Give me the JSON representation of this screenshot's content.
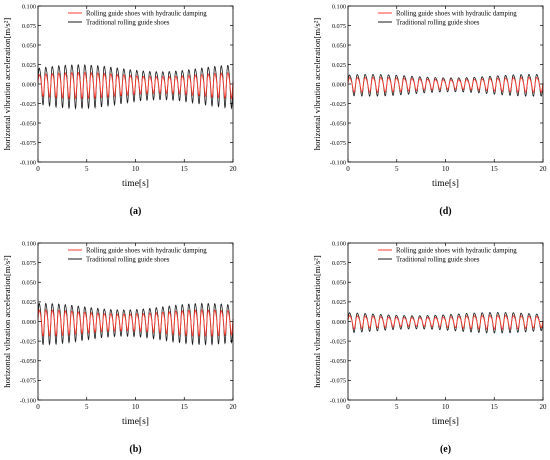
{
  "figure": {
    "panel_labels": [
      "(a)",
      "(d)",
      "(b)",
      "(e)"
    ]
  },
  "colors": {
    "damped": "#ff3b30",
    "traditional": "#1a1a1a",
    "axis": "#000000"
  },
  "chart_data": [
    {
      "type": "line",
      "panel": "(a)",
      "xlabel": "time[s]",
      "ylabel": "horizontal vibration acceleration[m/s²]",
      "xlim": [
        0,
        20
      ],
      "ylim": [
        -0.1,
        0.1
      ],
      "xticks": [
        "0",
        "5",
        "10",
        "15",
        "20"
      ],
      "yticks": [
        "-0.100",
        "-0.075",
        "-0.050",
        "-0.025",
        "0.000",
        "0.025",
        "0.050",
        "0.075",
        "0.100"
      ],
      "legend_position": "top-right",
      "grid": false,
      "series": [
        {
          "name": "Rolling guide shoes with hydraulic damping",
          "amplitude": 0.019,
          "frequency_hz": 1.5,
          "offset": 0.0
        },
        {
          "name": "Traditional rolling guide shoes",
          "amplitude": 0.032,
          "frequency_hz": 1.5,
          "offset": 0.0
        }
      ]
    },
    {
      "type": "line",
      "panel": "(d)",
      "xlabel": "time[s]",
      "ylabel": "horizontal vibration acceleration[m/s²]",
      "xlim": [
        0,
        20
      ],
      "ylim": [
        -0.1,
        0.1
      ],
      "xticks": [
        "0",
        "5",
        "10",
        "15",
        "20"
      ],
      "yticks": [
        "-0.100",
        "-0.075",
        "-0.050",
        "-0.025",
        "0.000",
        "0.025",
        "0.050",
        "0.075",
        "0.100"
      ],
      "legend_position": "top-right",
      "grid": false,
      "series": [
        {
          "name": "Rolling guide shoes with hydraulic damping",
          "amplitude": 0.011,
          "frequency_hz": 1.25,
          "offset": 0.0
        },
        {
          "name": "Traditional rolling guide shoes",
          "amplitude": 0.016,
          "frequency_hz": 1.25,
          "offset": 0.0
        }
      ]
    },
    {
      "type": "line",
      "panel": "(b)",
      "xlabel": "time[s]",
      "ylabel": "horizontal vibration acceleration[m/s²]",
      "xlim": [
        0,
        20
      ],
      "ylim": [
        -0.1,
        0.1
      ],
      "xticks": [
        "0",
        "5",
        "10",
        "15",
        "20"
      ],
      "yticks": [
        "-0.100",
        "-0.075",
        "-0.050",
        "-0.025",
        "0.000",
        "0.025",
        "0.050",
        "0.075",
        "0.100"
      ],
      "legend_position": "top-right",
      "grid": false,
      "series": [
        {
          "name": "Rolling guide shoes with hydraulic damping",
          "amplitude": 0.019,
          "frequency_hz": 1.5,
          "offset": 0.0
        },
        {
          "name": "Traditional rolling guide shoes",
          "amplitude": 0.03,
          "frequency_hz": 1.5,
          "offset": 0.0
        }
      ]
    },
    {
      "type": "line",
      "panel": "(e)",
      "xlabel": "time[s]",
      "ylabel": "horizontal vibration acceleration[m/s²]",
      "xlim": [
        0,
        20
      ],
      "ylim": [
        -0.1,
        0.1
      ],
      "xticks": [
        "0",
        "5",
        "10",
        "15",
        "20"
      ],
      "yticks": [
        "-0.100",
        "-0.075",
        "-0.050",
        "-0.025",
        "0.000",
        "0.025",
        "0.050",
        "0.075",
        "0.100"
      ],
      "legend_position": "top-right",
      "grid": false,
      "series": [
        {
          "name": "Rolling guide shoes with hydraulic damping",
          "amplitude": 0.01,
          "frequency_hz": 1.25,
          "offset": 0.0
        },
        {
          "name": "Traditional rolling guide shoes",
          "amplitude": 0.015,
          "frequency_hz": 1.25,
          "offset": 0.0
        }
      ]
    }
  ]
}
